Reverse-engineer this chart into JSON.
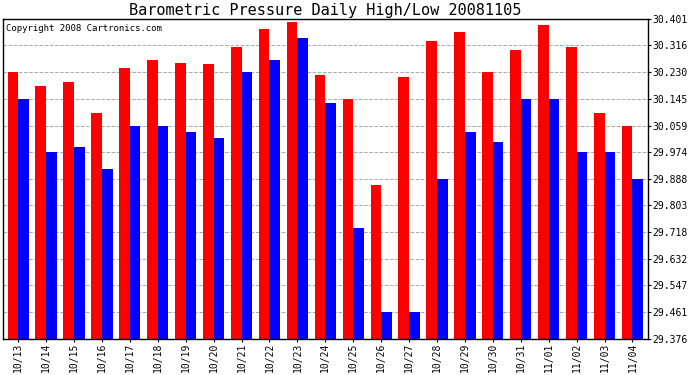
{
  "title": "Barometric Pressure Daily High/Low 20081105",
  "copyright": "Copyright 2008 Cartronics.com",
  "dates": [
    "10/13",
    "10/14",
    "10/15",
    "10/16",
    "10/17",
    "10/18",
    "10/19",
    "10/20",
    "10/21",
    "10/22",
    "10/23",
    "10/24",
    "10/25",
    "10/26",
    "10/27",
    "10/28",
    "10/29",
    "10/30",
    "10/31",
    "11/01",
    "11/02",
    "11/03",
    "11/04"
  ],
  "highs": [
    30.23,
    30.185,
    30.2,
    30.1,
    30.245,
    30.27,
    30.26,
    30.255,
    30.31,
    30.37,
    30.39,
    30.22,
    30.145,
    29.87,
    30.215,
    30.33,
    30.36,
    30.23,
    30.3,
    30.38,
    30.31,
    30.1,
    30.059
  ],
  "lows": [
    30.145,
    29.974,
    29.99,
    29.92,
    30.059,
    30.059,
    30.04,
    30.02,
    30.23,
    30.27,
    30.34,
    30.13,
    29.73,
    29.461,
    29.461,
    29.888,
    30.04,
    30.005,
    30.145,
    30.145,
    29.974,
    29.974,
    29.888
  ],
  "high_color": "#FF0000",
  "low_color": "#0000FF",
  "bg_color": "#FFFFFF",
  "grid_color": "#AAAAAA",
  "ymin": 29.376,
  "ymax": 30.401,
  "yticks": [
    29.376,
    29.461,
    29.547,
    29.632,
    29.718,
    29.803,
    29.888,
    29.974,
    30.059,
    30.145,
    30.23,
    30.316,
    30.401
  ],
  "bar_width": 0.38,
  "title_fontsize": 11,
  "tick_fontsize": 7,
  "copyright_fontsize": 6.5
}
